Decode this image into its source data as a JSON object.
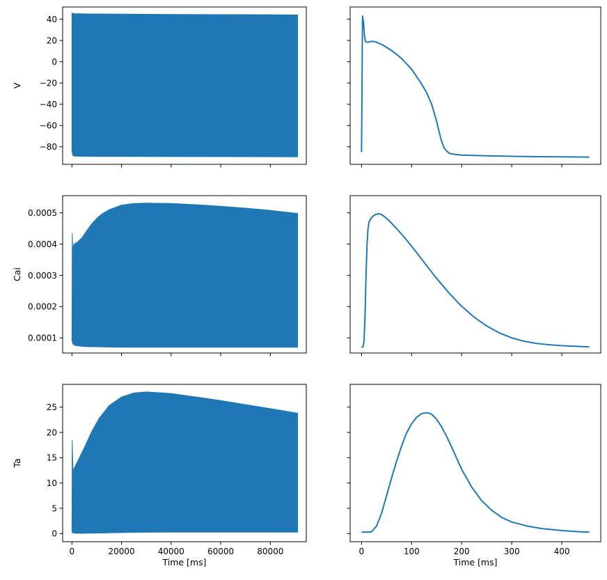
{
  "figure_title": "",
  "colors": {
    "series": "#1f77b4",
    "axis": "#000000",
    "background": "#ffffff"
  },
  "chart_data": [
    {
      "id": "v-full",
      "type": "area",
      "style": "oscillation-band",
      "title": "",
      "xlabel": "",
      "ylabel": "V",
      "xlim": [
        -3750,
        94500
      ],
      "ylim": [
        -96.5,
        51.5
      ],
      "xticks": [
        0,
        20000,
        40000,
        60000,
        80000
      ],
      "xtick_labels": [],
      "yticks": [
        -80,
        -60,
        -40,
        -20,
        0,
        20,
        40
      ],
      "ytick_labels": [
        "−80",
        "−60",
        "−40",
        "−20",
        "0",
        "20",
        "40"
      ],
      "upper": {
        "x": [
          0,
          100,
          300,
          1000,
          5000,
          20000,
          40000,
          60000,
          80000,
          91000
        ],
        "y": [
          46,
          45.5,
          45.5,
          45.2,
          45.0,
          44.8,
          44.5,
          44.3,
          44.2,
          44.0
        ]
      },
      "lower": {
        "x": [
          0,
          100,
          300,
          1000,
          5000,
          20000,
          40000,
          60000,
          80000,
          91000
        ],
        "y": [
          -85,
          -85,
          -88,
          -88.8,
          -89,
          -89.1,
          -89.2,
          -89.3,
          -89.4,
          -89.5
        ]
      }
    },
    {
      "id": "v-last",
      "type": "line",
      "title": "",
      "xlabel": "",
      "ylabel": "",
      "xlim": [
        -22.75,
        477.75
      ],
      "ylim": [
        -96.5,
        51.5
      ],
      "xticks": [
        0,
        100,
        200,
        300,
        400
      ],
      "xtick_labels": [],
      "yticks": [
        -80,
        -60,
        -40,
        -20,
        0,
        20,
        40
      ],
      "ytick_labels": [],
      "x": [
        0,
        2,
        4,
        6,
        8,
        10,
        12,
        15,
        20,
        25,
        30,
        40,
        50,
        60,
        70,
        80,
        90,
        100,
        110,
        120,
        130,
        140,
        150,
        155,
        160,
        165,
        170,
        175,
        180,
        190,
        200,
        250,
        300,
        350,
        400,
        455
      ],
      "y": [
        -85,
        43,
        37,
        24,
        19,
        18.5,
        18.3,
        18.5,
        19.2,
        19,
        18.3,
        16.3,
        13.5,
        10.5,
        7,
        3,
        -2,
        -7,
        -14,
        -21,
        -29,
        -40,
        -56,
        -66,
        -75,
        -81,
        -84,
        -86,
        -86.7,
        -87.3,
        -87.8,
        -88.5,
        -89,
        -89.3,
        -89.5,
        -89.7
      ]
    },
    {
      "id": "cai-full",
      "type": "area",
      "style": "oscillation-band",
      "title": "",
      "xlabel": "",
      "ylabel": "Cai",
      "xlim": [
        -3750,
        94500
      ],
      "ylim": [
        5.15e-05,
        0.000555
      ],
      "xticks": [
        0,
        20000,
        40000,
        60000,
        80000
      ],
      "xtick_labels": [],
      "yticks": [
        0.0001,
        0.0002,
        0.0003,
        0.0004,
        0.0005
      ],
      "ytick_labels": [
        "0.0001",
        "0.0002",
        "0.0003",
        "0.0004",
        "0.0005"
      ],
      "upper": {
        "x": [
          0,
          120,
          300,
          800,
          2000,
          4000,
          6000,
          8000,
          10000,
          12000,
          15000,
          20000,
          25000,
          30000,
          40000,
          50000,
          60000,
          70000,
          80000,
          91000
        ],
        "y": [
          9e-05,
          0.000435,
          0.00038,
          0.0004,
          0.000405,
          0.00042,
          0.000443,
          0.000465,
          0.000482,
          0.000496,
          0.00051,
          0.000525,
          0.00053,
          0.000531,
          0.00053,
          0.000526,
          0.000521,
          0.000515,
          0.000508,
          0.000498
        ]
      },
      "lower": {
        "x": [
          0,
          120,
          400,
          1500,
          5000,
          20000,
          40000,
          60000,
          80000,
          91000
        ],
        "y": [
          9e-05,
          8.8e-05,
          8e-05,
          7.5e-05,
          7.2e-05,
          7e-05,
          7e-05,
          7e-05,
          7e-05,
          7e-05
        ]
      }
    },
    {
      "id": "cai-last",
      "type": "line",
      "title": "",
      "xlabel": "",
      "ylabel": "",
      "xlim": [
        -22.75,
        477.75
      ],
      "ylim": [
        5.15e-05,
        0.000555
      ],
      "xticks": [
        0,
        100,
        200,
        300,
        400
      ],
      "xtick_labels": [],
      "yticks": [
        0.0001,
        0.0002,
        0.0003,
        0.0004,
        0.0005
      ],
      "ytick_labels": [],
      "x": [
        0,
        3,
        5,
        7,
        9,
        11,
        13,
        15,
        18,
        22,
        27,
        33,
        38,
        45,
        55,
        70,
        90,
        110,
        130,
        150,
        175,
        200,
        225,
        250,
        275,
        300,
        325,
        350,
        375,
        400,
        430,
        455
      ],
      "y": [
        7e-05,
        7.1e-05,
        9e-05,
        0.00017,
        0.0003,
        0.0004,
        0.00045,
        0.00047,
        0.00048,
        0.000488,
        0.000494,
        0.000497,
        0.000496,
        0.000489,
        0.000475,
        0.00045,
        0.000413,
        0.000373,
        0.000331,
        0.00029,
        0.000243,
        0.000201,
        0.000166,
        0.000138,
        0.000116,
        0.0001,
        8.9e-05,
        8.2e-05,
        7.8e-05,
        7.5e-05,
        7.3e-05,
        7.1e-05
      ]
    },
    {
      "id": "ta-full",
      "type": "area",
      "style": "oscillation-band",
      "title": "",
      "xlabel": "Time [ms]",
      "ylabel": "Ta",
      "xlim": [
        -3750,
        94500
      ],
      "ylim": [
        -1.6,
        29.5
      ],
      "xticks": [
        0,
        20000,
        40000,
        60000,
        80000
      ],
      "xtick_labels": [
        "0",
        "20000",
        "40000",
        "60000",
        "80000"
      ],
      "yticks": [
        0,
        5,
        10,
        15,
        20,
        25
      ],
      "ytick_labels": [
        "0",
        "5",
        "10",
        "15",
        "20",
        "25"
      ],
      "upper": {
        "x": [
          0,
          120,
          400,
          1000,
          3000,
          5000,
          8000,
          11000,
          15000,
          20000,
          25000,
          30000,
          40000,
          50000,
          60000,
          70000,
          80000,
          91000
        ],
        "y": [
          0.3,
          18.5,
          12.5,
          13,
          15,
          17,
          20.2,
          22.8,
          25.3,
          27,
          27.8,
          28,
          27.7,
          27,
          26.3,
          25.5,
          24.7,
          23.8
        ]
      },
      "lower": {
        "x": [
          0,
          500,
          3000,
          10000,
          20000,
          30000,
          40000,
          60000,
          80000,
          91000
        ],
        "y": [
          0.3,
          0.1,
          0.05,
          0.1,
          0.2,
          0.28,
          0.3,
          0.3,
          0.3,
          0.3
        ]
      }
    },
    {
      "id": "ta-last",
      "type": "line",
      "title": "",
      "xlabel": "Time [ms]",
      "ylabel": "",
      "xlim": [
        -22.75,
        477.75
      ],
      "ylim": [
        -1.6,
        29.5
      ],
      "xticks": [
        0,
        100,
        200,
        300,
        400
      ],
      "xtick_labels": [
        "0",
        "100",
        "200",
        "300",
        "400"
      ],
      "yticks": [
        0,
        5,
        10,
        15,
        20,
        25
      ],
      "ytick_labels": [],
      "x": [
        0,
        10,
        20,
        30,
        40,
        50,
        60,
        70,
        80,
        90,
        100,
        110,
        120,
        130,
        135,
        140,
        150,
        160,
        170,
        180,
        190,
        200,
        220,
        240,
        260,
        280,
        300,
        330,
        360,
        400,
        430,
        455
      ],
      "y": [
        0.3,
        0.3,
        0.35,
        1.5,
        4,
        7.5,
        11,
        14.3,
        17.3,
        19.9,
        21.7,
        23,
        23.7,
        23.9,
        23.8,
        23.6,
        22.6,
        21.1,
        19.2,
        17.1,
        14.9,
        12.7,
        9.2,
        6.5,
        4.6,
        3.2,
        2.3,
        1.5,
        1.0,
        0.6,
        0.4,
        0.3
      ]
    }
  ]
}
